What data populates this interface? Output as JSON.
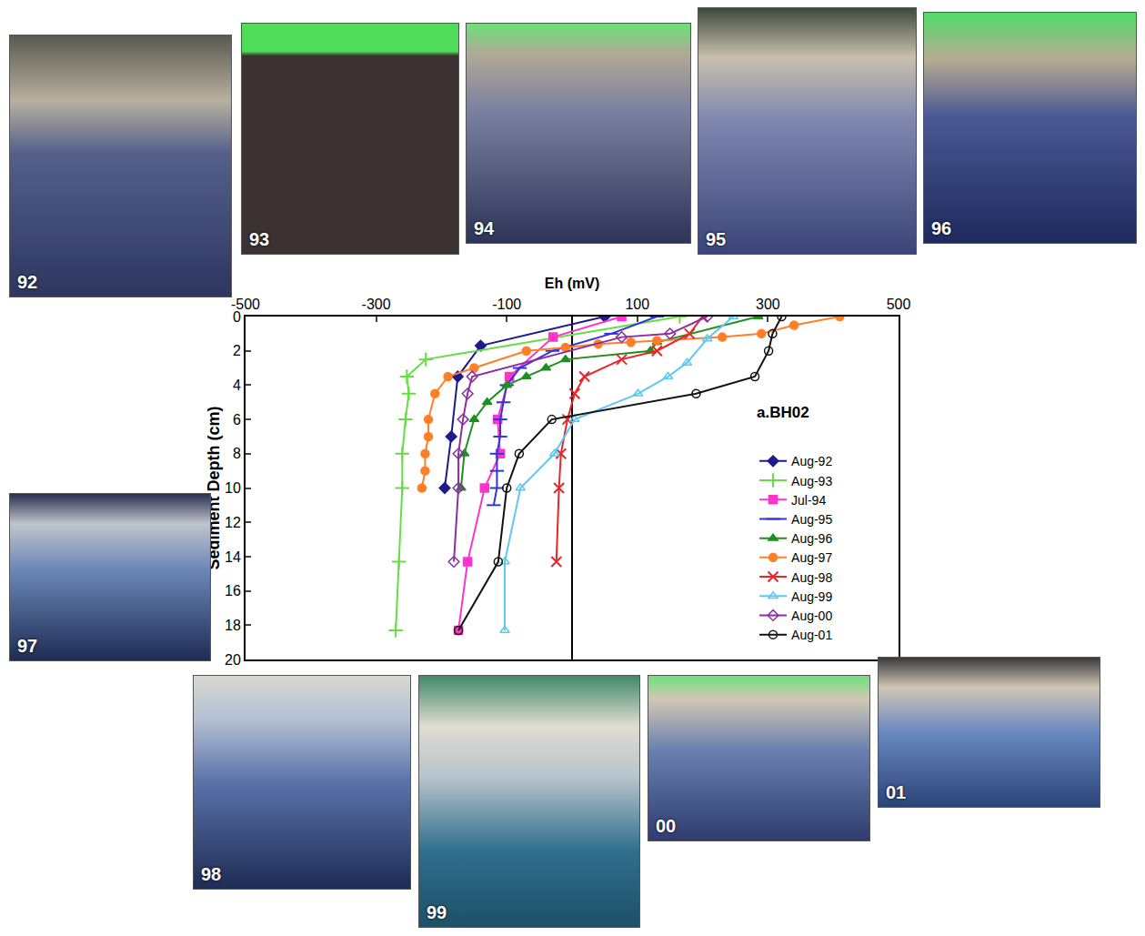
{
  "chart_data": {
    "type": "line",
    "x_label": "Eh (mV)",
    "y_label": "Sediment Depth (cm)",
    "xlim": [
      -500,
      500
    ],
    "xticks": [
      -500,
      -300,
      -100,
      100,
      300,
      500
    ],
    "ylim": [
      20,
      0
    ],
    "yticks": [
      0,
      2,
      4,
      6,
      8,
      10,
      12,
      14,
      16,
      18,
      20
    ],
    "grid": false,
    "legend": "right",
    "annotations": [
      "a.BH02"
    ],
    "series": [
      {
        "name": "Aug-92",
        "color": "#1c1c8c",
        "marker": "diamond",
        "x": [
          50,
          -140,
          -175,
          -185,
          -195
        ],
        "y": [
          0,
          1.7,
          3.5,
          7,
          10
        ]
      },
      {
        "name": "Aug-93",
        "color": "#66dd44",
        "marker": "cross",
        "x": [
          165,
          -224,
          -253,
          -250,
          -255,
          -260,
          -260,
          -265,
          -270
        ],
        "y": [
          0,
          2.5,
          3.5,
          4.5,
          6,
          8,
          10,
          14.3,
          18.3
        ]
      },
      {
        "name": "Jul-94",
        "color": "#ff33cc",
        "marker": "square",
        "x": [
          76,
          -29,
          -96,
          -114,
          -110,
          -134,
          -160,
          -174
        ],
        "y": [
          0,
          1.2,
          3.5,
          6,
          8,
          10,
          14.3,
          18.3
        ]
      },
      {
        "name": "Aug-95",
        "color": "#3333dd",
        "marker": "dash",
        "x": [
          130,
          60,
          -30,
          -80,
          -100,
          -105,
          -110,
          -110,
          -115,
          -115,
          -115,
          -120
        ],
        "y": [
          0,
          1,
          2,
          3,
          4,
          5,
          6,
          7,
          8,
          9,
          10,
          11
        ]
      },
      {
        "name": "Aug-96",
        "color": "#1f8f1f",
        "marker": "triangle",
        "x": [
          285,
          130,
          120,
          -10,
          -40,
          -70,
          -100,
          -130,
          -150,
          -165,
          -170
        ],
        "y": [
          0,
          1.5,
          2,
          2.5,
          3,
          3.5,
          4,
          5,
          6,
          8,
          10
        ]
      },
      {
        "name": "Aug-97",
        "color": "#ff7f27",
        "marker": "circle",
        "x": [
          410,
          340,
          290,
          230,
          130,
          90,
          40,
          -10,
          -70,
          -150,
          -190,
          -210,
          -220,
          -220,
          -225,
          -225,
          -230
        ],
        "y": [
          0,
          0.5,
          1,
          1.2,
          1.4,
          1.5,
          1.6,
          1.8,
          2,
          3,
          3.5,
          4.5,
          6,
          7,
          8,
          9,
          10
        ]
      },
      {
        "name": "Aug-98",
        "color": "#e8262a",
        "marker": "x",
        "x": [
          200,
          180,
          130,
          76,
          19,
          4,
          -7,
          -17,
          -20,
          -24
        ],
        "y": [
          0,
          1,
          2,
          2.5,
          3.5,
          4.5,
          6,
          8,
          10,
          14.3
        ]
      },
      {
        "name": "Aug-99",
        "color": "#5fc8f0",
        "marker": "triangle-open",
        "x": [
          247,
          207,
          176,
          147,
          101,
          4,
          -27,
          -79,
          -103,
          -103
        ],
        "y": [
          0,
          1.3,
          2.7,
          3.5,
          4.5,
          6,
          8,
          10,
          14.3,
          18.3
        ]
      },
      {
        "name": "Aug-00",
        "color": "#8b2ea0",
        "marker": "diamond-open",
        "x": [
          207,
          150,
          76,
          -153,
          -160,
          -167,
          -174,
          -174,
          -181
        ],
        "y": [
          0,
          1,
          1.2,
          3.5,
          4.5,
          6,
          8,
          10,
          14.3
        ]
      },
      {
        "name": "Aug-01",
        "color": "#111111",
        "marker": "circle-open",
        "x": [
          321,
          307,
          301,
          280,
          190,
          -31,
          -81,
          -100,
          -113,
          -174
        ],
        "y": [
          0,
          1,
          2,
          3.5,
          4.5,
          6,
          8,
          10,
          14.3,
          18.3
        ]
      }
    ]
  },
  "photos": [
    {
      "label": "92"
    },
    {
      "label": "93"
    },
    {
      "label": "94"
    },
    {
      "label": "95"
    },
    {
      "label": "96"
    },
    {
      "label": "97"
    },
    {
      "label": "98"
    },
    {
      "label": "99"
    },
    {
      "label": "00"
    },
    {
      "label": "01"
    }
  ]
}
